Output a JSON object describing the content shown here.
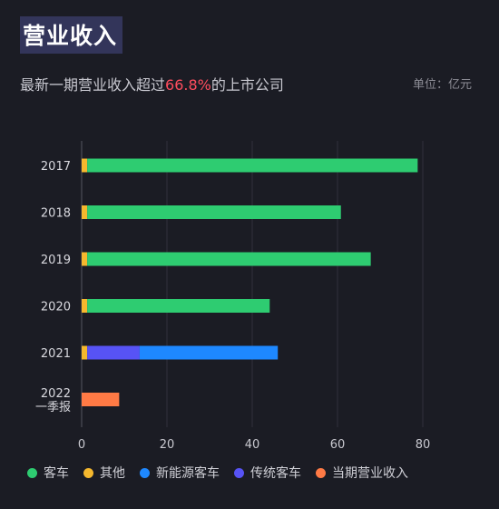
{
  "header": {
    "title": "营业收入",
    "subtitle_prefix": "最新一期营业收入超过",
    "subtitle_highlight": "66.8%",
    "subtitle_suffix": "的上市公司",
    "unit": "单位：亿元"
  },
  "colors": {
    "background": "#1b1c24",
    "highlight": "#ff4d5e",
    "客车": "#2ecc71",
    "其他": "#f5b82e",
    "新能源客车": "#1e88ff",
    "传统客车": "#5753f5",
    "当期营业收入": "#ff7a45"
  },
  "chart_data": {
    "type": "bar",
    "orientation": "horizontal",
    "stacked": true,
    "categories": [
      "2017",
      "2018",
      "2019",
      "2020",
      "2021",
      "2022\n一季报"
    ],
    "series": [
      {
        "name": "其他",
        "color": "#f5b82e",
        "values": [
          1.3,
          1.3,
          1.3,
          1.3,
          1.3,
          0
        ]
      },
      {
        "name": "客车",
        "color": "#2ecc71",
        "values": [
          77.5,
          59.5,
          66.5,
          42.8,
          0,
          0
        ]
      },
      {
        "name": "传统客车",
        "color": "#5753f5",
        "values": [
          0,
          0,
          0,
          0,
          12.3,
          0
        ]
      },
      {
        "name": "新能源客车",
        "color": "#1e88ff",
        "values": [
          0,
          0,
          0,
          0,
          32.4,
          0
        ]
      },
      {
        "name": "当期营业收入",
        "color": "#ff7a45",
        "values": [
          0,
          0,
          0,
          0,
          0,
          8.8
        ]
      }
    ],
    "xlim": [
      0,
      80
    ],
    "xticks": [
      0,
      20,
      40,
      60,
      80
    ],
    "grid": true,
    "legend_position": "bottom"
  },
  "legend": {
    "items": [
      {
        "label": "客车",
        "color": "#2ecc71"
      },
      {
        "label": "其他",
        "color": "#f5b82e"
      },
      {
        "label": "新能源客车",
        "color": "#1e88ff"
      },
      {
        "label": "传统客车",
        "color": "#5753f5"
      },
      {
        "label": "当期营业收入",
        "color": "#ff7a45"
      }
    ]
  }
}
